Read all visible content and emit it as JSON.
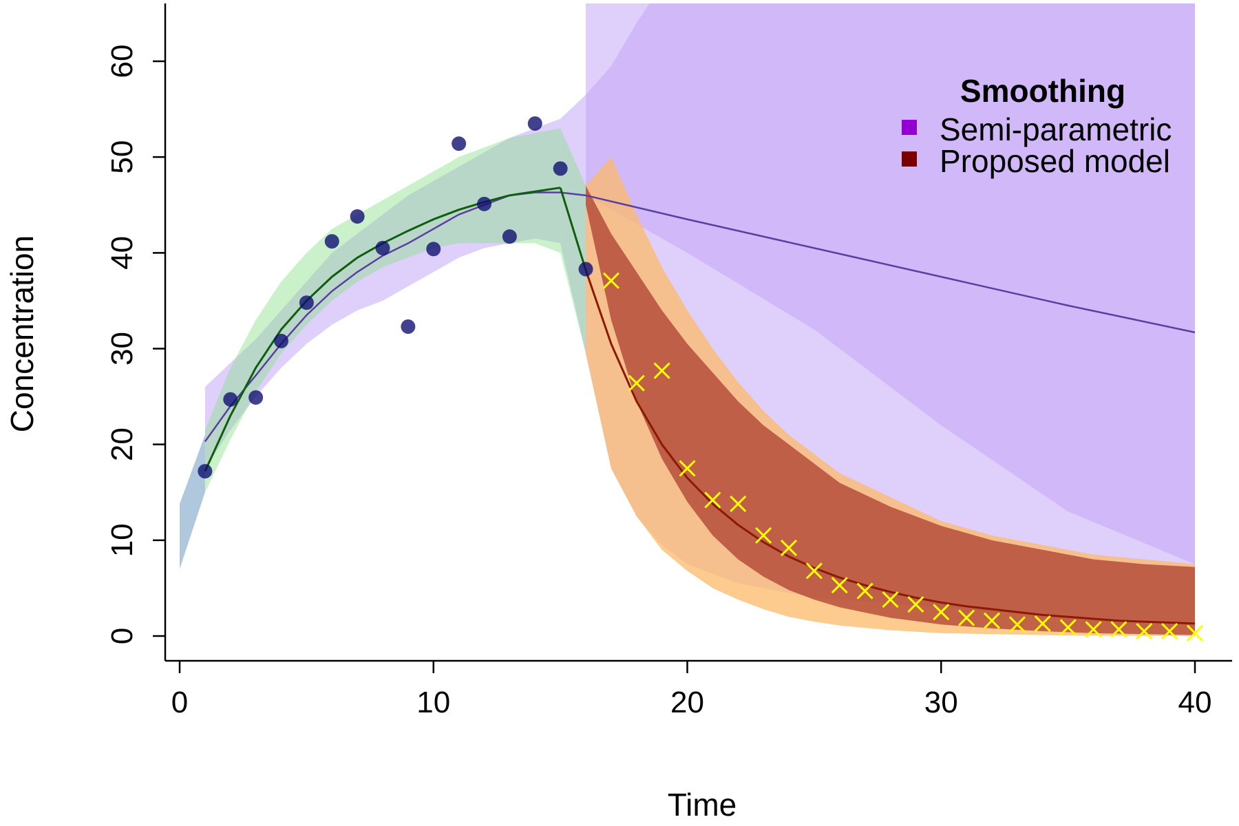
{
  "chart_data": {
    "type": "line",
    "title": "",
    "xlabel": "Time",
    "ylabel": "Concentration",
    "xlim": [
      0,
      40
    ],
    "ylim": [
      0,
      65
    ],
    "xticks": [
      0,
      10,
      20,
      30,
      40
    ],
    "yticks": [
      0,
      10,
      20,
      30,
      40,
      50,
      60
    ],
    "grid": false,
    "legend": {
      "title": "Smoothing",
      "position": "top-right",
      "entries": [
        {
          "label": "Semi-parametric",
          "color": "#9400D3"
        },
        {
          "label": "Proposed model",
          "color": "#7A0000"
        }
      ]
    },
    "bands": [
      {
        "id": "semi-band-pre",
        "color": "#C4A8F8",
        "opacity": 0.55,
        "x": [
          1,
          2,
          3,
          4,
          5,
          6,
          7,
          8,
          9,
          10,
          11,
          12,
          13,
          14,
          15
        ],
        "lower": [
          17.5,
          21.5,
          25.0,
          28.0,
          30.5,
          32.5,
          34.0,
          35.0,
          36.5,
          38.0,
          39.5,
          40.5,
          41.0,
          41.5,
          41.0
        ],
        "upper": [
          26.0,
          28.5,
          31.0,
          34.0,
          37.0,
          40.0,
          42.0,
          44.0,
          46.0,
          47.5,
          49.0,
          50.5,
          52.0,
          53.0,
          54.0
        ]
      },
      {
        "id": "semi-band-post",
        "color": "#C4A8F8",
        "opacity": 0.55,
        "x": [
          15,
          16,
          17,
          18,
          19,
          20,
          22,
          25,
          30,
          35,
          40
        ],
        "lower": [
          41.0,
          29.5,
          17.5,
          12.5,
          9.5,
          7.5,
          5.5,
          4.0,
          3.0,
          2.0,
          1.5
        ],
        "upper": [
          54.0,
          56.5,
          59.5,
          64.0,
          68.0,
          70.0,
          70.0,
          70.0,
          70.0,
          70.0,
          70.0
        ]
      },
      {
        "id": "semi-band-post-lower-fill",
        "color": "#C4A8F8",
        "opacity": 0.55,
        "x": [
          16,
          20,
          25,
          30,
          35,
          40
        ],
        "lower": [
          46.0,
          40.0,
          32.0,
          22.0,
          13.0,
          7.5
        ],
        "upper": [
          70.0,
          70.0,
          70.0,
          70.0,
          70.0,
          70.0
        ]
      },
      {
        "id": "proposed-fit-band",
        "color": "#8CE08C",
        "opacity": 0.45,
        "x": [
          1,
          2,
          3,
          4,
          5,
          6,
          7,
          8,
          9,
          10,
          11,
          12,
          13,
          14,
          15,
          16
        ],
        "lower": [
          15.0,
          20.5,
          25.5,
          29.5,
          32.5,
          35.0,
          37.0,
          38.5,
          39.5,
          40.5,
          41.0,
          41.0,
          41.0,
          41.0,
          40.0,
          29.5
        ],
        "upper": [
          21.5,
          28.0,
          33.0,
          37.0,
          40.0,
          42.5,
          44.0,
          45.5,
          47.0,
          48.5,
          50.0,
          51.0,
          52.0,
          52.5,
          53.0,
          47.0
        ]
      },
      {
        "id": "initial-band",
        "color": "#7AA3C8",
        "opacity": 0.6,
        "x": [
          0,
          1
        ],
        "lower": [
          7.0,
          15.0
        ],
        "upper": [
          13.8,
          21.0
        ]
      },
      {
        "id": "proposed-pred-band-outer",
        "color": "#FDB96A",
        "opacity": 0.75,
        "x": [
          16,
          17,
          18,
          19,
          20,
          21,
          22,
          23,
          24,
          25,
          26,
          28,
          30,
          32,
          34,
          36,
          38,
          40
        ],
        "lower": [
          29.5,
          17.5,
          12.5,
          9.0,
          6.8,
          5.0,
          3.8,
          2.8,
          2.0,
          1.5,
          1.1,
          0.6,
          0.3,
          0.2,
          0.1,
          0.05,
          0.02,
          0.0
        ],
        "upper": [
          47.0,
          50.0,
          44.0,
          38.5,
          34.0,
          30.0,
          26.5,
          23.5,
          21.0,
          19.0,
          17.0,
          14.5,
          12.0,
          10.5,
          9.5,
          8.5,
          8.0,
          7.5
        ]
      },
      {
        "id": "proposed-pred-band-inner",
        "color": "#A8362A",
        "opacity": 0.7,
        "x": [
          16,
          17,
          18,
          19,
          20,
          21,
          22,
          23,
          24,
          25,
          26,
          28,
          30,
          32,
          34,
          36,
          38,
          40
        ],
        "lower": [
          45.0,
          33.0,
          24.5,
          18.5,
          14.0,
          10.5,
          8.0,
          6.2,
          4.8,
          3.8,
          3.0,
          1.9,
          1.2,
          0.8,
          0.5,
          0.3,
          0.2,
          0.1
        ],
        "upper": [
          47.0,
          42.0,
          38.0,
          34.0,
          30.5,
          27.5,
          24.5,
          22.0,
          20.0,
          18.0,
          16.0,
          13.5,
          11.5,
          10.0,
          9.0,
          8.0,
          7.5,
          7.2
        ]
      }
    ],
    "series": [
      {
        "name": "Semi-parametric",
        "type": "line",
        "color": "#5A3FA0",
        "width": 2.5,
        "x": [
          1,
          2,
          3,
          4,
          5,
          6,
          7,
          8,
          9,
          10,
          11,
          12,
          13,
          14,
          15,
          16,
          20,
          25,
          30,
          35,
          40
        ],
        "y": [
          20.3,
          24.0,
          27.2,
          30.5,
          33.5,
          36.0,
          38.0,
          39.7,
          41.0,
          42.5,
          44.0,
          45.0,
          46.0,
          46.3,
          46.3,
          46.0,
          43.5,
          40.5,
          37.5,
          34.5,
          31.7
        ]
      },
      {
        "name": "Proposed model",
        "type": "line",
        "color": "#0E5E0E",
        "width": 3,
        "x": [
          1,
          2,
          3,
          4,
          5,
          6,
          7,
          8,
          9,
          10,
          11,
          12,
          13,
          14,
          15
        ],
        "y": [
          17.2,
          23.0,
          28.0,
          32.0,
          35.0,
          37.5,
          39.5,
          41.0,
          42.3,
          43.5,
          44.5,
          45.3,
          46.0,
          46.4,
          46.8
        ]
      },
      {
        "name": "Proposed model",
        "type": "line",
        "color": "#0E5E0E",
        "width": 3,
        "x": [
          15,
          16
        ],
        "y": [
          46.8,
          38.2
        ]
      },
      {
        "name": "Proposed model",
        "type": "line",
        "color": "#8B1A00",
        "width": 3,
        "x": [
          16,
          17,
          18,
          19,
          20,
          21,
          22,
          23,
          24,
          25,
          26,
          27,
          28,
          29,
          30,
          31,
          32,
          33,
          34,
          35,
          36,
          37,
          38,
          39,
          40
        ],
        "y": [
          38.2,
          30.5,
          24.5,
          20.0,
          16.5,
          13.8,
          11.6,
          9.8,
          8.3,
          7.1,
          6.1,
          5.3,
          4.6,
          4.0,
          3.5,
          3.1,
          2.8,
          2.5,
          2.2,
          2.0,
          1.8,
          1.6,
          1.5,
          1.4,
          1.3
        ]
      }
    ],
    "observed": {
      "color": "#0B0B6E",
      "x": [
        1,
        2,
        3,
        4,
        5,
        6,
        7,
        8,
        9,
        10,
        11,
        12,
        13,
        14,
        15,
        16
      ],
      "y": [
        17.2,
        24.7,
        24.9,
        30.8,
        34.8,
        41.2,
        43.8,
        40.5,
        32.3,
        40.4,
        51.4,
        45.1,
        41.7,
        53.5,
        48.8,
        38.3
      ]
    },
    "predicted_points": {
      "color": "#FFFF00",
      "x": [
        17,
        18,
        19,
        20,
        21,
        22,
        23,
        24,
        25,
        26,
        27,
        28,
        29,
        30,
        31,
        32,
        33,
        34,
        35,
        36,
        37,
        38,
        39,
        40
      ],
      "y": [
        37.1,
        26.4,
        27.7,
        17.5,
        14.2,
        13.8,
        10.5,
        9.2,
        6.8,
        5.3,
        4.7,
        3.8,
        3.3,
        2.5,
        1.9,
        1.6,
        1.2,
        1.3,
        0.9,
        0.7,
        0.7,
        0.5,
        0.5,
        0.3
      ]
    }
  }
}
